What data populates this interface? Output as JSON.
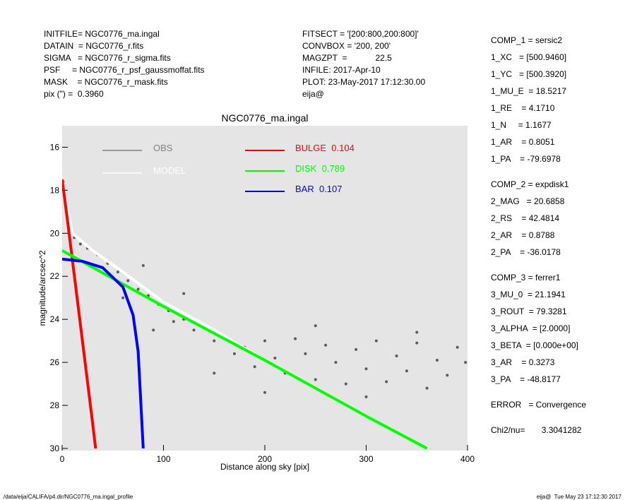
{
  "chart_data": {
    "type": "scatter",
    "title": "NGC0776_ma.ingal",
    "x_label": "Distance along sky [pix]",
    "y_label": "magnitude/arcsec^2",
    "xlim": [
      0,
      400
    ],
    "xticks": [
      0,
      100,
      200,
      300,
      400
    ],
    "ylim": [
      15.0,
      30.1
    ],
    "yticks": [
      16,
      18,
      20,
      22,
      24,
      26,
      28,
      30
    ],
    "y_inverted": true,
    "background": "#e5e5e5",
    "header_left": [
      "INITFILE= NGC0776_ma.ingal",
      "DATAIN  = NGC0776_r.fits",
      "SIGMA   = NGC0776_r_sigma.fits",
      "PSF     = NGC0776_r_psf_gaussmoffat.fits",
      "MASK    = NGC0776_r_mask.fits",
      "pix (\") =  0.3960"
    ],
    "header_middle": [
      "FITSECT = '[200:800,200:800]'",
      "CONVBOX = '200, 200'",
      "MAGZPT  =            22.5",
      "INFILE: 2017-Apr-10",
      "PLOT: 23-May-2017 17:12:30.00",
      "eija@"
    ],
    "parameters": [
      [
        "COMP_1 = sersic2",
        "1_XC   = [500.9460]",
        "1_YC   = [500.3920]",
        "1_MU_E  = 18.5217",
        "1_RE    = 4.1710",
        "1_N     = 1.1677",
        "1_AR    = 0.8051",
        "1_PA    = -79.6978"
      ],
      [
        "COMP_2 = expdisk1",
        "2_MAG   = 20.6858",
        "2_RS    = 42.4814",
        "2_AR    = 0.8788",
        "2_PA    = -36.0178"
      ],
      [
        "COMP_3 = ferrer1",
        "3_MU_0  = 21.1941",
        "3_ROUT  = 79.3281",
        "3_ALPHA  = [2.0000]",
        "3_BETA  = [0.000e+00]",
        "3_AR    = 0.3273",
        "3_PA    = -48.8177"
      ],
      [
        "ERROR   = Convergence"
      ],
      [
        "Chi2/nu=       3.3041282"
      ]
    ],
    "footer_left": "/data/eija/CALIFA/p4.dir/NGC0776_ma.ingal_profile",
    "footer_right": "eija@  Tue May 23 17:12:30 2017",
    "series": [
      {
        "name": "OBS",
        "type": "scatter",
        "color": "#5a5a5a",
        "legend_color": "#808080",
        "x": [
          1,
          3,
          5,
          8,
          12,
          18,
          25,
          35,
          45,
          55,
          65,
          75,
          85,
          95,
          105,
          110,
          120,
          130,
          140,
          150,
          160,
          170,
          180,
          190,
          200,
          210,
          220,
          230,
          240,
          250,
          260,
          270,
          280,
          290,
          300,
          310,
          320,
          330,
          340,
          350,
          360,
          370,
          380,
          390,
          398,
          60,
          90,
          150,
          200,
          250,
          300,
          350,
          120,
          80
        ],
        "values": [
          17.6,
          18.5,
          19.2,
          19.8,
          20.2,
          20.5,
          20.7,
          21.0,
          21.4,
          21.8,
          22.2,
          22.6,
          22.9,
          23.3,
          23.6,
          24.1,
          24.0,
          24.5,
          24.4,
          25.0,
          24.8,
          25.6,
          25.3,
          26.2,
          25.0,
          25.8,
          26.5,
          24.9,
          25.6,
          26.8,
          25.2,
          26.0,
          27.0,
          25.4,
          26.3,
          25.0,
          26.9,
          25.7,
          26.4,
          25.1,
          27.2,
          25.9,
          26.6,
          25.3,
          26.0,
          23.0,
          24.5,
          26.5,
          27.4,
          24.3,
          27.6,
          24.6,
          22.8,
          21.5
        ]
      },
      {
        "name": "MODEL",
        "type": "line",
        "color": "#ffffff",
        "x": [
          0,
          10,
          30,
          60,
          100,
          150,
          200,
          300,
          360
        ],
        "values": [
          17.5,
          20.0,
          20.8,
          21.8,
          23.2,
          24.5,
          25.9,
          28.5,
          30.0
        ]
      },
      {
        "name": "BULGE  0.104",
        "type": "line",
        "color": "#ff0000",
        "x": [
          0,
          5,
          10,
          15,
          20,
          25,
          30,
          33
        ],
        "values": [
          17.5,
          19.3,
          21.2,
          23.1,
          25.0,
          26.9,
          28.8,
          30.0
        ]
      },
      {
        "name": "DISK  0.789",
        "type": "line",
        "color": "#00ff00",
        "x": [
          0,
          100,
          200,
          300,
          360
        ],
        "values": [
          20.8,
          23.4,
          25.9,
          28.5,
          30.0
        ]
      },
      {
        "name": "BAR  0.107",
        "type": "line",
        "color": "#0000ff",
        "x": [
          0,
          20,
          40,
          60,
          70,
          75,
          80
        ],
        "values": [
          21.2,
          21.3,
          21.6,
          22.5,
          23.8,
          25.5,
          30.0
        ]
      }
    ]
  }
}
